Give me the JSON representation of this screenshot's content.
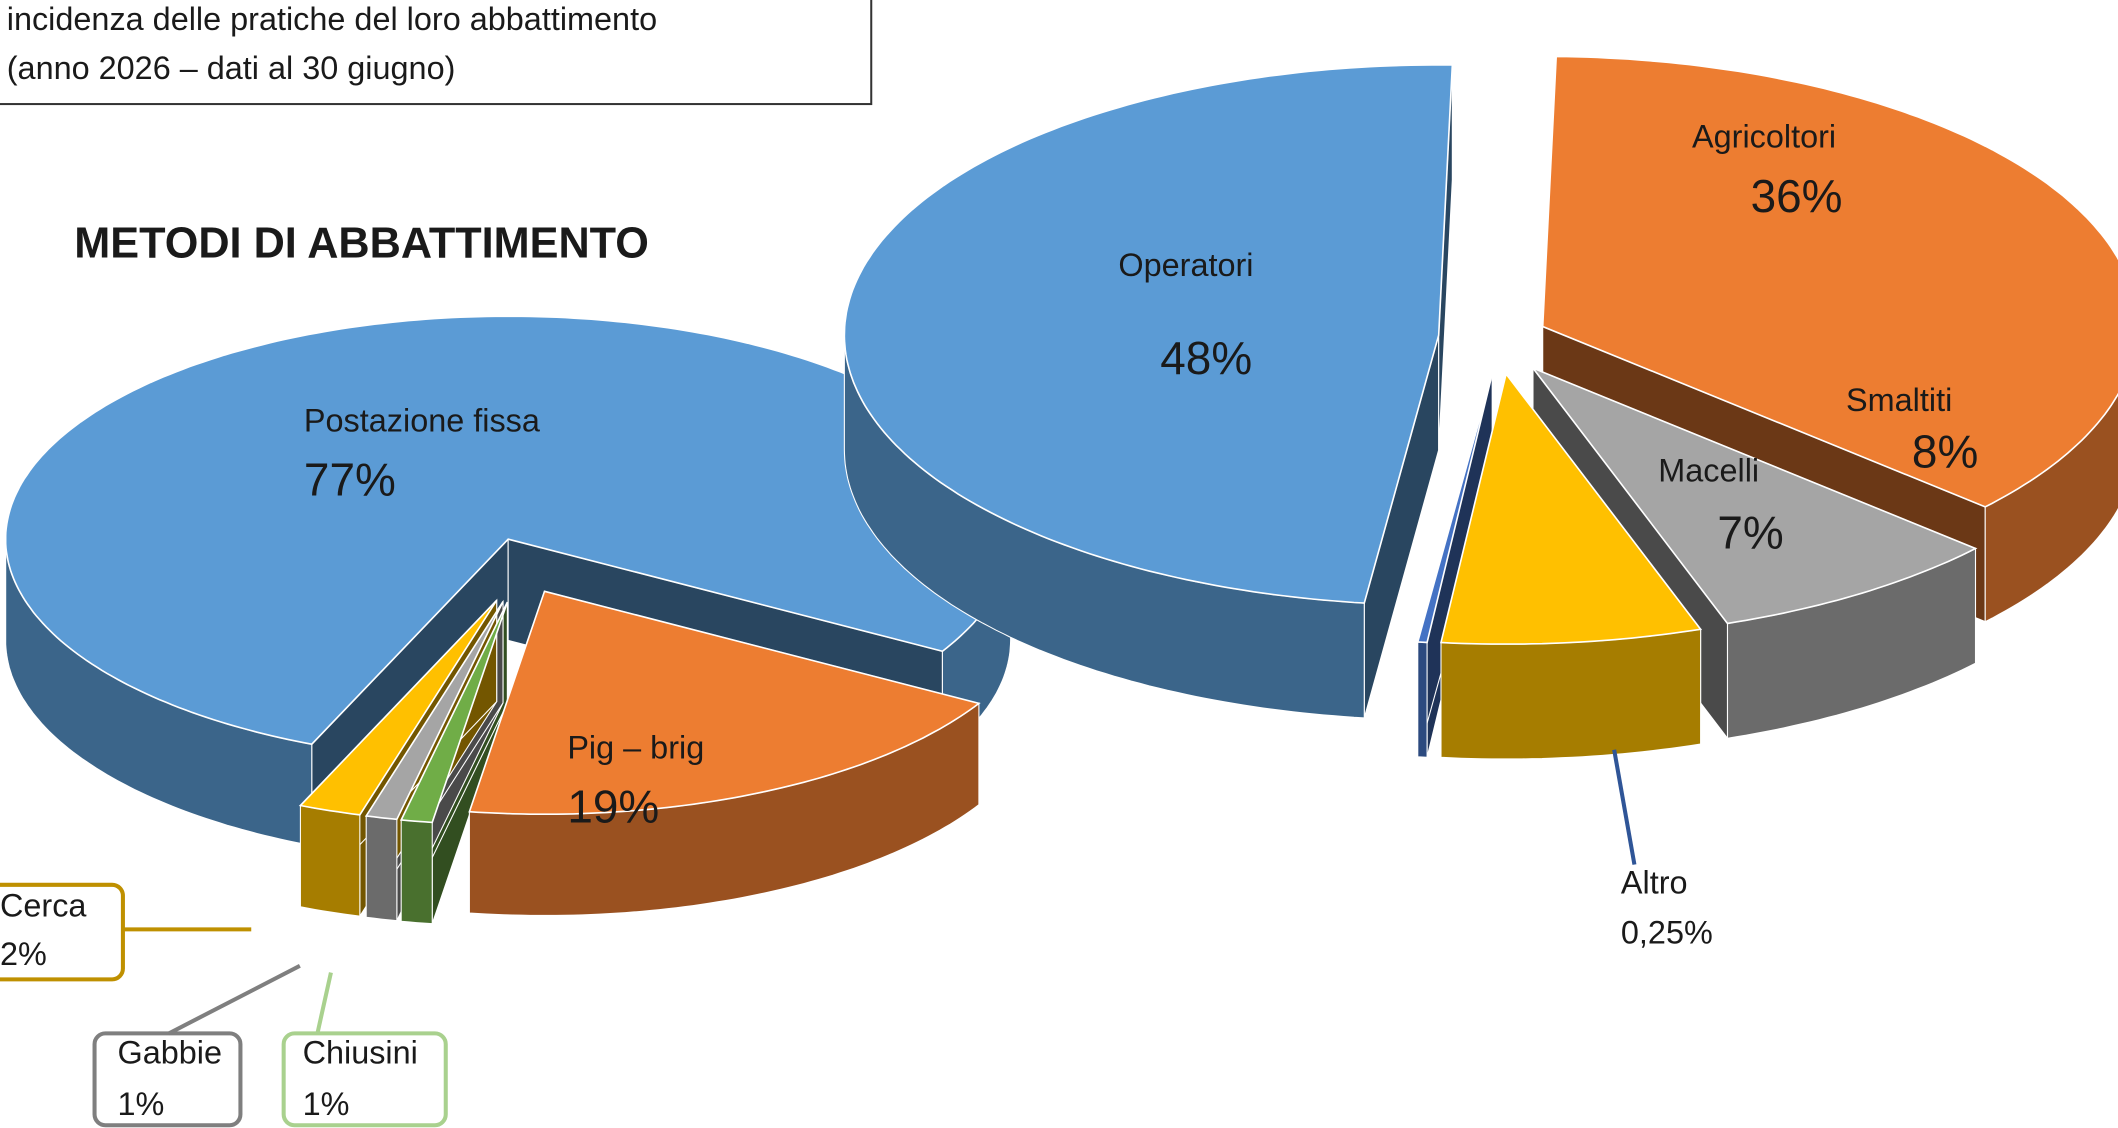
{
  "caption_lines": [
    "incidenza delle pratiche del loro abbattimento",
    "(anno 2026 – dati al 30 giugno)"
  ],
  "chart_data": [
    {
      "type": "pie",
      "title": "METODI DI ABBATTIMENTO",
      "categories": [
        "Postazione fissa",
        "Pig – brig",
        "Cerca",
        "Gabbie",
        "Chiusini"
      ],
      "values": [
        77,
        19,
        2,
        1,
        1
      ],
      "value_labels": [
        "77%",
        "19%",
        "2%",
        "1%",
        "1%"
      ],
      "colors": [
        "#5b9bd5",
        "#ed7d31",
        "#ffc000",
        "#a5a5a5",
        "#70ad47"
      ]
    },
    {
      "type": "pie",
      "categories": [
        "Operatori",
        "Agricoltori",
        "Smaltiti",
        "Macelli",
        "Altro"
      ],
      "values": [
        48,
        36,
        8,
        7,
        0.25
      ],
      "value_labels": [
        "48%",
        "36%",
        "8%",
        "7%",
        "0,25%"
      ],
      "colors": [
        "#5b9bd5",
        "#ed7d31",
        "#a5a5a5",
        "#ffc000",
        "#4472c4"
      ]
    }
  ]
}
